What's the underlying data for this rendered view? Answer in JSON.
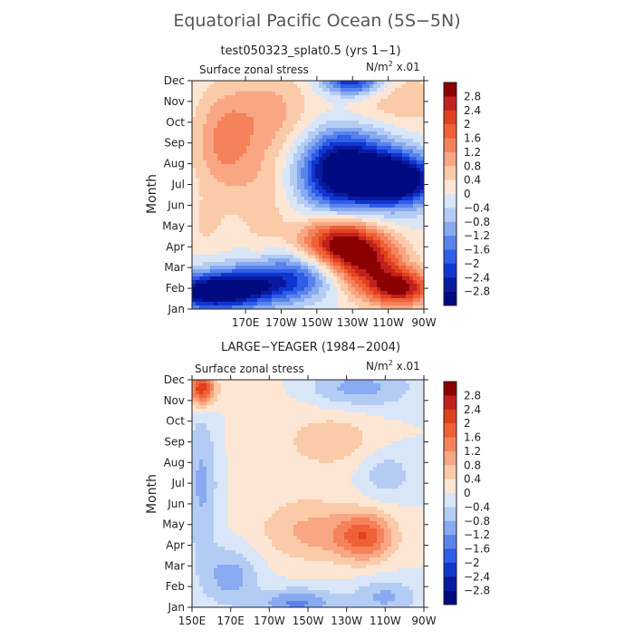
{
  "title": "Equatorial Pacific Ocean (5S−5N)",
  "panels": [
    {
      "subtitle": "test050323_splat0.5 (yrs 1−1)",
      "left_label": "Surface zonal stress",
      "right_label_base": "N/m",
      "right_label_sup": "2",
      "right_label_suffix": " x.01",
      "ylabel": "Month"
    },
    {
      "subtitle": "LARGE−YEAGER (1984−2004)",
      "left_label": "Surface zonal stress",
      "right_label_base": "N/m",
      "right_label_sup": "2",
      "right_label_suffix": " x.01",
      "ylabel": "Month"
    }
  ],
  "chart_data": [
    {
      "type": "heatmap",
      "title": "test050323_splat0.5 (yrs 1−1)",
      "xlabel": "",
      "ylabel": "Month",
      "x_tick_labels": [
        "170E",
        "170W",
        "150W",
        "130W",
        "110W",
        "90W"
      ],
      "x_ticks_deg": [
        170,
        190,
        210,
        230,
        250,
        270
      ],
      "xlim_deg": [
        140,
        270
      ],
      "y_tick_labels": [
        "Jan",
        "Feb",
        "Mar",
        "Apr",
        "May",
        "Jun",
        "Jul",
        "Aug",
        "Sep",
        "Oct",
        "Nov",
        "Dec"
      ],
      "ylim": [
        1,
        12
      ],
      "units": "N/m2 x.01",
      "levels": [
        -2.8,
        -2.4,
        -2,
        -1.6,
        -1.2,
        -0.8,
        -0.4,
        0,
        0.4,
        0.8,
        1.2,
        1.6,
        2,
        2.4,
        2.8
      ],
      "features": [
        {
          "lon": 150,
          "month": 1.8,
          "value": -3.0,
          "slon": 18,
          "smon": 0.6
        },
        {
          "lon": 180,
          "month": 2.2,
          "value": -2.2,
          "slon": 22,
          "smon": 0.7
        },
        {
          "lon": 205,
          "month": 3.1,
          "value": -1.2,
          "slon": 18,
          "smon": 0.8
        },
        {
          "lon": 222,
          "month": 4.1,
          "value": 3.2,
          "slon": 16,
          "smon": 0.9
        },
        {
          "lon": 240,
          "month": 3.0,
          "value": 2.2,
          "slon": 14,
          "smon": 1.0
        },
        {
          "lon": 258,
          "month": 2.0,
          "value": 2.6,
          "slon": 12,
          "smon": 0.6
        },
        {
          "lon": 220,
          "month": 7.6,
          "value": -2.4,
          "slon": 14,
          "smon": 1.3
        },
        {
          "lon": 255,
          "month": 7.2,
          "value": -3.2,
          "slon": 16,
          "smon": 0.8
        },
        {
          "lon": 240,
          "month": 8.0,
          "value": -2.0,
          "slon": 20,
          "smon": 1.5
        },
        {
          "lon": 230,
          "month": 12.0,
          "value": -2.6,
          "slon": 12,
          "smon": 0.5
        },
        {
          "lon": 158,
          "month": 9.0,
          "value": 1.3,
          "slon": 12,
          "smon": 1.8
        },
        {
          "lon": 185,
          "month": 10.5,
          "value": 0.9,
          "slon": 16,
          "smon": 1.5
        },
        {
          "lon": 250,
          "month": 10.5,
          "value": 0.9,
          "slon": 22,
          "smon": 1.6
        },
        {
          "lon": 180,
          "month": 6.2,
          "value": 0.6,
          "slon": 10,
          "smon": 2.0
        },
        {
          "lon": 148,
          "month": 5.0,
          "value": 0.4,
          "slon": 8,
          "smon": 1.0
        }
      ]
    },
    {
      "type": "heatmap",
      "title": "LARGE−YEAGER (1984−2004)",
      "xlabel": "",
      "ylabel": "Month",
      "x_tick_labels": [
        "150E",
        "170E",
        "170W",
        "150W",
        "130W",
        "110W",
        "90W"
      ],
      "x_ticks_deg": [
        150,
        170,
        190,
        210,
        230,
        250,
        270
      ],
      "xlim_deg": [
        150,
        270
      ],
      "y_tick_labels": [
        "Jan",
        "Feb",
        "Mar",
        "Apr",
        "May",
        "Jun",
        "Jul",
        "Aug",
        "Sep",
        "Oct",
        "Nov",
        "Dec"
      ],
      "ylim": [
        1,
        12
      ],
      "units": "N/m2 x.01",
      "levels": [
        -2.8,
        -2.4,
        -2,
        -1.6,
        -1.2,
        -0.8,
        -0.4,
        0,
        0.4,
        0.8,
        1.2,
        1.6,
        2,
        2.4,
        2.8
      ],
      "features": [
        {
          "lon": 155,
          "month": 11.6,
          "value": 2.4,
          "slon": 5,
          "smon": 0.6
        },
        {
          "lon": 155,
          "month": 7.0,
          "value": -0.9,
          "slon": 6,
          "smon": 2.5
        },
        {
          "lon": 170,
          "month": 2.5,
          "value": -1.0,
          "slon": 10,
          "smon": 1.0
        },
        {
          "lon": 205,
          "month": 1.2,
          "value": -1.3,
          "slon": 14,
          "smon": 0.5
        },
        {
          "lon": 250,
          "month": 1.5,
          "value": -0.9,
          "slon": 12,
          "smon": 0.6
        },
        {
          "lon": 240,
          "month": 4.4,
          "value": 1.6,
          "slon": 10,
          "smon": 0.8
        },
        {
          "lon": 215,
          "month": 4.6,
          "value": 0.9,
          "slon": 20,
          "smon": 1.0
        },
        {
          "lon": 250,
          "month": 7.4,
          "value": -0.7,
          "slon": 10,
          "smon": 0.8
        },
        {
          "lon": 235,
          "month": 11.6,
          "value": -1.0,
          "slon": 20,
          "smon": 0.7
        },
        {
          "lon": 228,
          "month": 9.1,
          "value": 0.5,
          "slon": 14,
          "smon": 1.0
        },
        {
          "lon": 200,
          "month": 9.0,
          "value": 0.3,
          "slon": 20,
          "smon": 2.5
        }
      ]
    }
  ],
  "colorbar": {
    "labels": [
      "2.8",
      "2.4",
      "2",
      "1.6",
      "1.2",
      "0.8",
      "0.4",
      "0",
      "−0.4",
      "−0.8",
      "−1.2",
      "−1.6",
      "−2",
      "−2.4",
      "−2.8"
    ],
    "colors": [
      "#8b0000",
      "#c0201e",
      "#e0401e",
      "#f06036",
      "#f5825a",
      "#f8a684",
      "#fbcaa8",
      "#fde6d4",
      "#d8e6f8",
      "#b4ccf4",
      "#88aaf0",
      "#5a84ec",
      "#2f5ee8",
      "#1036cf",
      "#0a1aa0",
      "#000a80"
    ]
  }
}
